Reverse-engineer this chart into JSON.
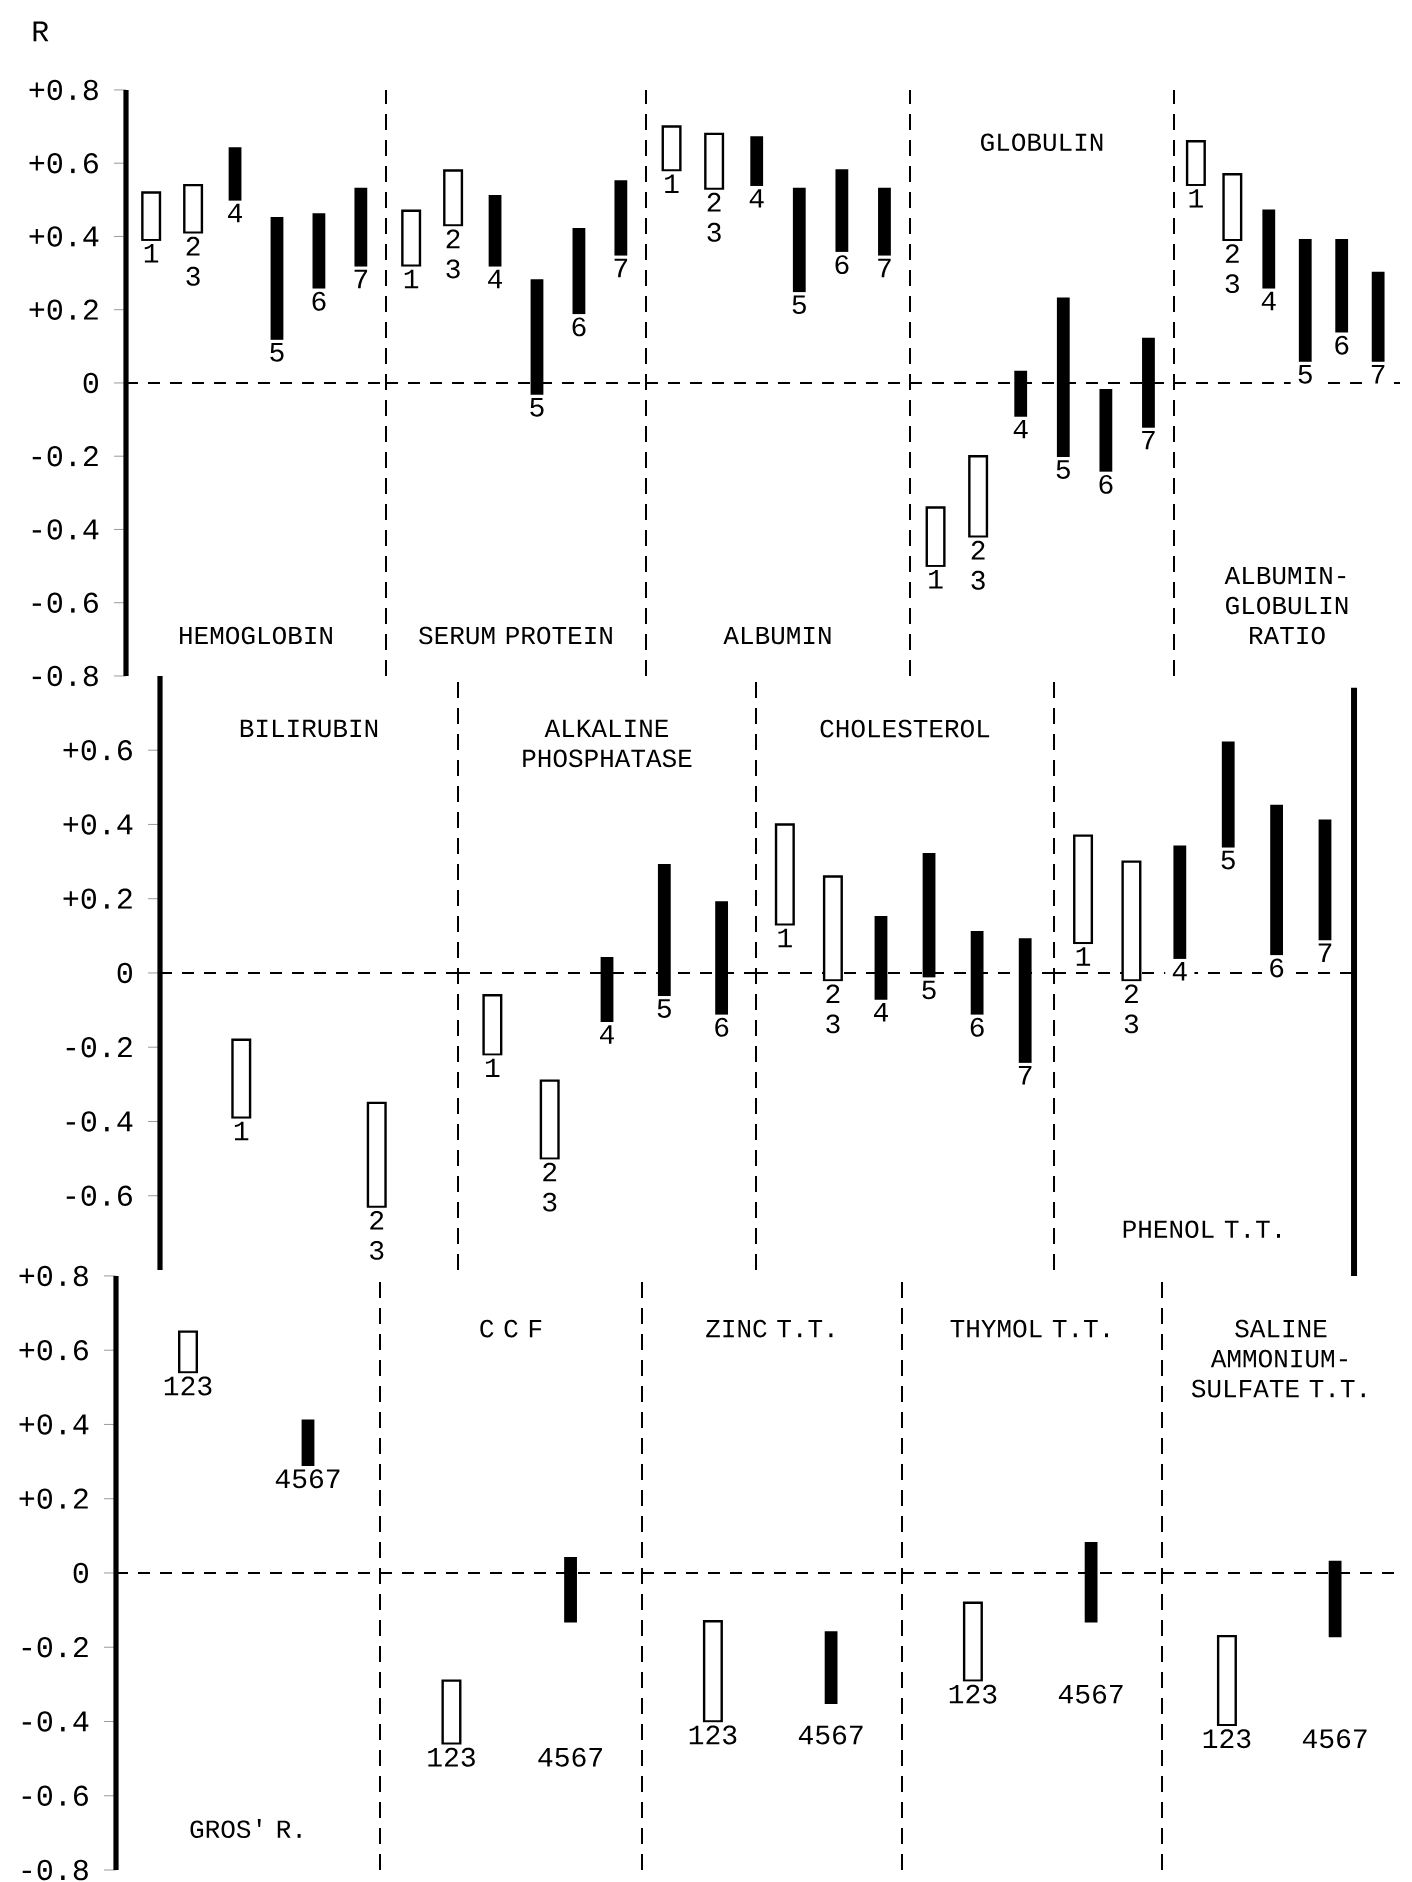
{
  "chart_data": [
    {
      "type": "bar",
      "title": "HEMOGLOBIN",
      "ylabel": "R",
      "categories": [
        "1",
        "2 3",
        "4",
        "5",
        "6",
        "7"
      ],
      "base": [
        0.39,
        0.41,
        0.5,
        0.12,
        0.26,
        0.32
      ],
      "values": [
        0.13,
        0.13,
        0.14,
        0.33,
        0.2,
        0.21
      ],
      "colors": [
        "#ffffff",
        "#ffffff",
        "#000000",
        "#000000",
        "#000000",
        "#000000"
      ],
      "ylim": [
        -0.8,
        0.8
      ],
      "yticks": [
        {
          "value": 0.8,
          "label": "+0.8"
        },
        {
          "value": 0.6,
          "label": "+0.6"
        },
        {
          "value": 0.4,
          "label": "+0.4"
        },
        {
          "value": 0.2,
          "label": "+0.2"
        },
        0,
        -0.2,
        -0.4,
        -0.6,
        -0.8
      ],
      "ref_lines": [
        {
          "axis": "y",
          "value": 0,
          "line_style": "dashed"
        }
      ]
    },
    {
      "type": "bar",
      "title": "SERUM PROTEIN",
      "categories": [
        "1",
        "2 3",
        "4",
        "5",
        "6",
        "7"
      ],
      "base": [
        0.32,
        0.43,
        0.32,
        -0.03,
        0.19,
        0.35
      ],
      "values": [
        0.15,
        0.15,
        0.19,
        0.31,
        0.23,
        0.2
      ],
      "colors": [
        "#ffffff",
        "#ffffff",
        "#000000",
        "#000000",
        "#000000",
        "#000000"
      ],
      "ylim": [
        -0.8,
        0.8
      ],
      "tick_labels": "x",
      "ref_lines": [
        {
          "axis": "y",
          "value": 0,
          "line_style": "dashed"
        }
      ]
    },
    {
      "type": "bar",
      "title": "ALBUMIN",
      "categories": [
        "1",
        "2 3",
        "4",
        "5",
        "6",
        "7"
      ],
      "base": [
        0.58,
        0.53,
        0.54,
        0.25,
        0.36,
        0.35
      ],
      "values": [
        0.12,
        0.15,
        0.13,
        0.28,
        0.22,
        0.18
      ],
      "colors": [
        "#ffffff",
        "#ffffff",
        "#000000",
        "#000000",
        "#000000",
        "#000000"
      ],
      "ylim": [
        -0.8,
        0.8
      ],
      "tick_labels": "x",
      "ref_lines": [
        {
          "axis": "y",
          "value": 0,
          "line_style": "dashed"
        }
      ]
    },
    {
      "type": "bar",
      "title": "GLOBULIN",
      "categories": [
        "1",
        "2 3",
        "4",
        "5",
        "6",
        "7"
      ],
      "base": [
        -0.5,
        -0.42,
        -0.09,
        -0.2,
        -0.24,
        -0.12
      ],
      "values": [
        0.16,
        0.22,
        0.12,
        0.43,
        0.22,
        0.24
      ],
      "colors": [
        "#ffffff",
        "#ffffff",
        "#000000",
        "#000000",
        "#000000",
        "#000000"
      ],
      "ylim": [
        -0.8,
        0.8
      ],
      "tick_labels": "x",
      "ref_lines": [
        {
          "axis": "y",
          "value": 0,
          "line_style": "dashed"
        }
      ]
    },
    {
      "type": "bar",
      "title": "ALBUMIN-GLOBULIN RATIO",
      "categories": [
        "1",
        "2 3",
        "4",
        "5",
        "6",
        "7"
      ],
      "base": [
        0.54,
        0.39,
        0.26,
        0.06,
        0.14,
        0.06
      ],
      "values": [
        0.12,
        0.18,
        0.21,
        0.33,
        0.25,
        0.24
      ],
      "colors": [
        "#ffffff",
        "#ffffff",
        "#000000",
        "#000000",
        "#000000",
        "#000000"
      ],
      "ylim": [
        -0.8,
        0.8
      ],
      "tick_labels": "x",
      "ref_lines": [
        {
          "axis": "y",
          "value": 0,
          "line_style": "dashed"
        }
      ]
    },
    {
      "type": "bar",
      "title": "BILIRUBIN",
      "categories": [
        "1",
        "2 3"
      ],
      "base": [
        -0.39,
        -0.63
      ],
      "values": [
        0.21,
        0.28
      ],
      "colors": [
        "#ffffff",
        "#ffffff"
      ],
      "ylim": [
        -0.8,
        0.8
      ],
      "yticks": [
        {
          "value": 0.6,
          "label": "+0.6"
        },
        {
          "value": 0.4,
          "label": "+0.4"
        },
        {
          "value": 0.2,
          "label": "+0.2"
        },
        0,
        -0.2,
        -0.4,
        -0.6
      ],
      "ref_lines": [
        {
          "axis": "y",
          "value": 0,
          "line_style": "dashed"
        }
      ]
    },
    {
      "type": "bar",
      "title": "ALKALINE PHOSPHATASE",
      "categories": [
        "1",
        "2 3",
        "4",
        "5",
        "6"
      ],
      "base": [
        -0.22,
        -0.5,
        -0.13,
        -0.06,
        -0.11
      ],
      "values": [
        0.16,
        0.21,
        0.17,
        0.35,
        0.3
      ],
      "colors": [
        "#ffffff",
        "#ffffff",
        "#000000",
        "#000000",
        "#000000"
      ],
      "ylim": [
        -0.8,
        0.8
      ],
      "tick_labels": "x",
      "ref_lines": [
        {
          "axis": "y",
          "value": 0,
          "line_style": "dashed"
        }
      ]
    },
    {
      "type": "bar",
      "title": "CHOLESTEROL",
      "categories": [
        "1",
        "2 3",
        "4",
        "5",
        "6",
        "7"
      ],
      "base": [
        0.13,
        -0.02,
        -0.07,
        -0.01,
        -0.11,
        -0.24
      ],
      "values": [
        0.27,
        0.28,
        0.22,
        0.33,
        0.22,
        0.33
      ],
      "colors": [
        "#ffffff",
        "#ffffff",
        "#000000",
        "#000000",
        "#000000",
        "#000000"
      ],
      "ylim": [
        -0.8,
        0.8
      ],
      "tick_labels": "x",
      "ref_lines": [
        {
          "axis": "y",
          "value": 0,
          "line_style": "dashed"
        }
      ]
    },
    {
      "type": "bar",
      "title": "PHENOL T.T.",
      "categories": [
        "1",
        "2 3",
        "4",
        "5",
        "6",
        "7"
      ],
      "base": [
        0.08,
        -0.02,
        0.04,
        0.34,
        0.05,
        0.09
      ],
      "values": [
        0.29,
        0.32,
        0.3,
        0.28,
        0.4,
        0.32
      ],
      "colors": [
        "#ffffff",
        "#ffffff",
        "#000000",
        "#000000",
        "#000000",
        "#000000"
      ],
      "ylim": [
        -0.8,
        0.8
      ],
      "tick_labels": "x",
      "ref_lines": [
        {
          "axis": "y",
          "value": 0,
          "line_style": "dashed"
        }
      ]
    },
    {
      "type": "bar",
      "title": "GROS' R.",
      "categories": [
        "123",
        "4567"
      ],
      "base": [
        0.54,
        0.29
      ],
      "values": [
        0.11,
        0.12
      ],
      "colors": [
        "#ffffff",
        "#000000"
      ],
      "ylim": [
        -0.8,
        0.8
      ],
      "yticks": [
        {
          "value": 0.8,
          "label": "+0.8"
        },
        {
          "value": 0.6,
          "label": "+0.6"
        },
        {
          "value": 0.4,
          "label": "+0.4"
        },
        {
          "value": 0.2,
          "label": "+0.2"
        },
        0,
        -0.2,
        -0.4,
        -0.6,
        -0.8
      ],
      "ref_lines": [
        {
          "axis": "y",
          "value": 0,
          "line_style": "dashed"
        }
      ]
    },
    {
      "type": "bar",
      "title": "C C F",
      "categories": [
        "123",
        "4567"
      ],
      "base": [
        -0.46,
        -0.13
      ],
      "values": [
        0.17,
        0.17
      ],
      "colors": [
        "#ffffff",
        "#000000"
      ],
      "ylim": [
        -0.8,
        0.8
      ],
      "tick_labels": "x",
      "ref_lines": [
        {
          "axis": "y",
          "value": 0,
          "line_style": "dashed"
        }
      ]
    },
    {
      "type": "bar",
      "title": "ZINC T.T.",
      "categories": [
        "123",
        "4567"
      ],
      "base": [
        -0.4,
        -0.35
      ],
      "values": [
        0.27,
        0.19
      ],
      "colors": [
        "#ffffff",
        "#000000"
      ],
      "ylim": [
        -0.8,
        0.8
      ],
      "tick_labels": "x",
      "ref_lines": [
        {
          "axis": "y",
          "value": 0,
          "line_style": "dashed"
        }
      ]
    },
    {
      "type": "bar",
      "title": "THYMOL T.T.",
      "categories": [
        "123",
        "4567"
      ],
      "base": [
        -0.29,
        -0.13
      ],
      "values": [
        0.21,
        0.21
      ],
      "colors": [
        "#ffffff",
        "#000000"
      ],
      "ylim": [
        -0.8,
        0.8
      ],
      "tick_labels": "x",
      "ref_lines": [
        {
          "axis": "y",
          "value": 0,
          "line_style": "dashed"
        }
      ]
    },
    {
      "type": "bar",
      "title": "SALINE AMMONIUM-SULFATE T.T.",
      "categories": [
        "123",
        "4567"
      ],
      "base": [
        -0.41,
        -0.17
      ],
      "values": [
        0.24,
        0.2
      ],
      "colors": [
        "#ffffff",
        "#000000"
      ],
      "ylim": [
        -0.8,
        0.8
      ],
      "tick_labels": "x",
      "ref_lines": [
        {
          "axis": "y",
          "value": 0,
          "line_style": "dashed"
        }
      ]
    }
  ]
}
